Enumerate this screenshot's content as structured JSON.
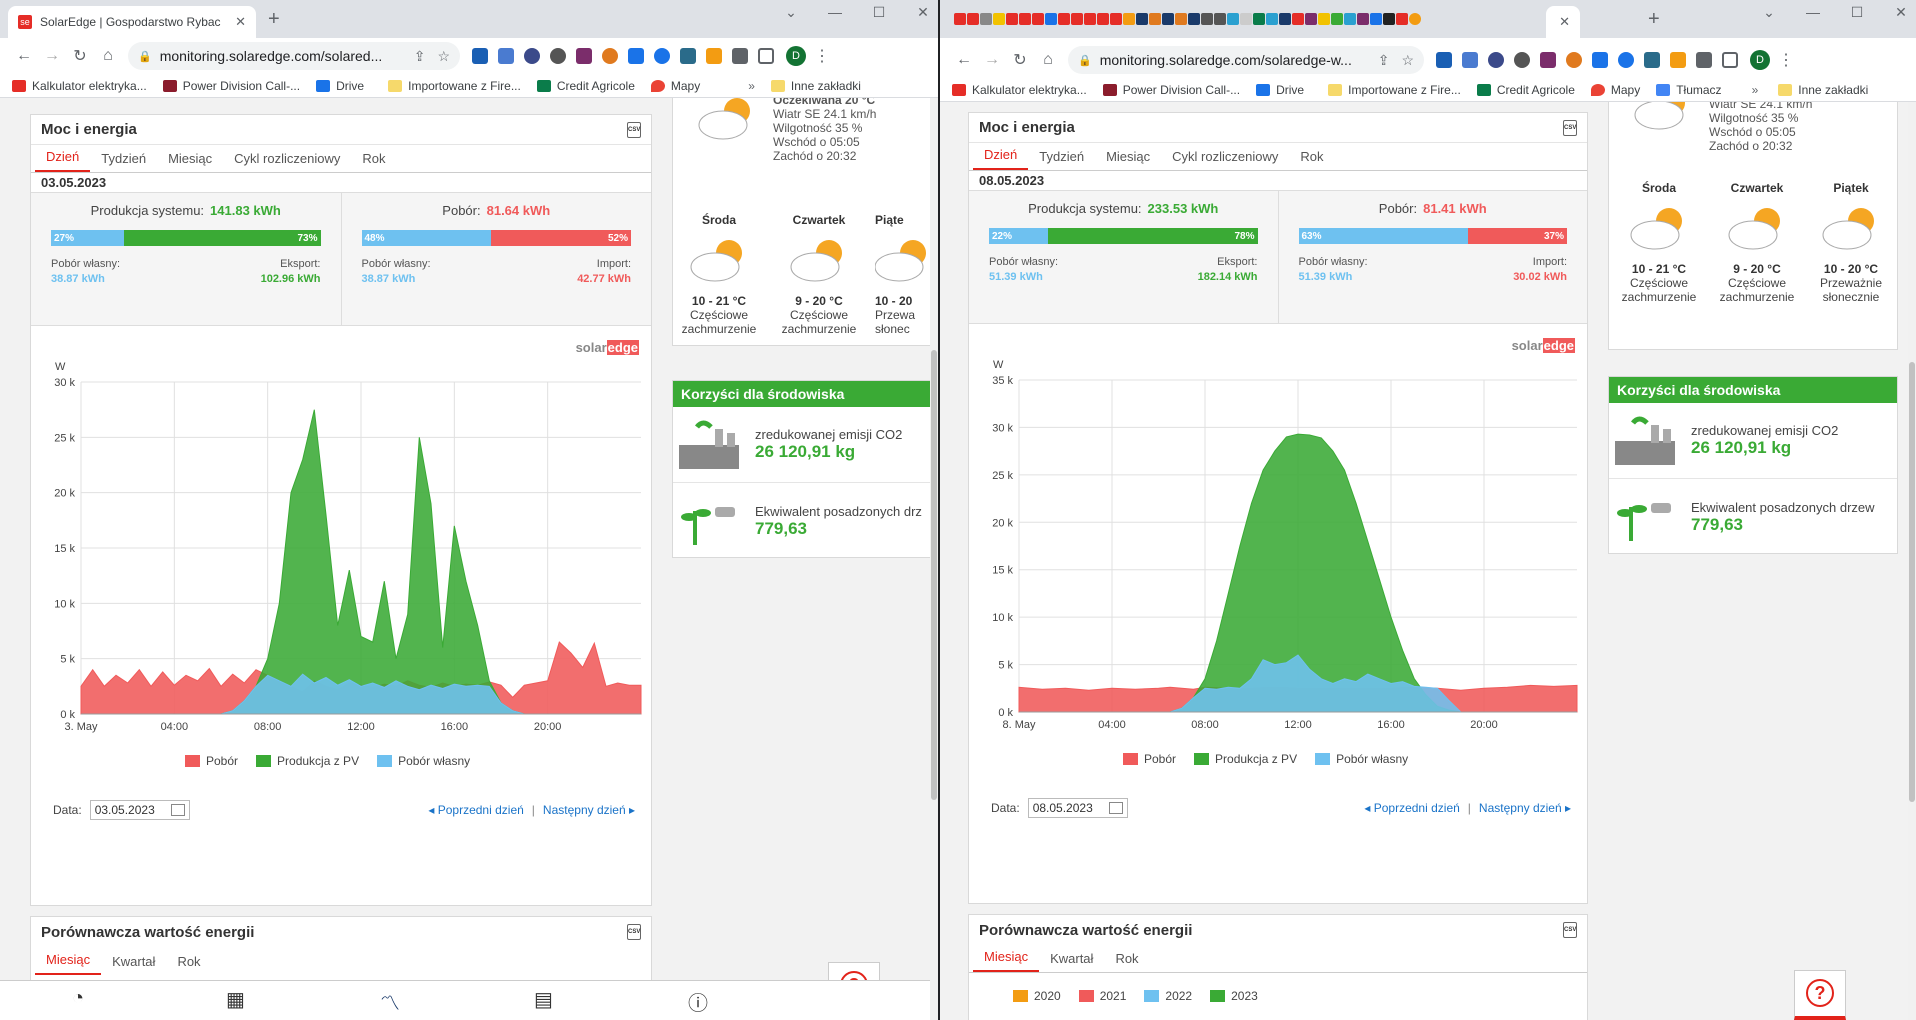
{
  "left": {
    "tab_title": "SolarEdge | Gospodarstwo Rybac",
    "url": "monitoring.solaredge.com/solared...",
    "bookmarks": [
      "Kalkulator elektryka...",
      "Power Division Call-...",
      "Drive",
      "Importowane z Fire...",
      "Credit Agricole",
      "Mapy",
      "Inne zakładki"
    ],
    "panel_title": "Moc i energia",
    "tabs": [
      "Dzień",
      "Tydzień",
      "Miesiąc",
      "Cykl rozliczeniowy",
      "Rok"
    ],
    "date": "03.05.2023",
    "production_label": "Produkcja systemu:",
    "production_value": "141.83 kWh",
    "consumption_label": "Pobór:",
    "consumption_value": "81.64 kWh",
    "prod_bar": {
      "left_pct": "27%",
      "right_pct": "73%",
      "left_frac": 0.27
    },
    "cons_bar": {
      "left_pct": "48%",
      "right_pct": "52%",
      "left_frac": 0.48
    },
    "self_label": "Pobór własny:",
    "self_value": "38.87 kWh",
    "export_label": "Eksport:",
    "export_value": "102.96 kWh",
    "self_label2": "Pobór własny:",
    "self_value2": "38.87 kWh",
    "import_label": "Import:",
    "import_value": "42.77 kWh",
    "brand_a": "solar",
    "brand_b": "edge",
    "legend": [
      "Pobór",
      "Produkcja z PV",
      "Pobór własny"
    ],
    "date_field_label": "Data:",
    "date_field_value": "03.05.2023",
    "prev_day": "Poprzedni dzień",
    "next_day": "Następny dzień",
    "cmp_title": "Porównawcza wartość energii",
    "cmp_tabs": [
      "Miesiąc",
      "Kwartał",
      "Rok"
    ],
    "weather_top": [
      "Oczekiwana 20 °C",
      "Wiatr SE 24.1 km/h",
      "Wilgotność 35 %",
      "Wschód o 05:05",
      "Zachód o 20:32"
    ],
    "forecast": [
      {
        "day": "Środa",
        "temp": "10 - 21 °C",
        "desc1": "Częściowe",
        "desc2": "zachmurzenie"
      },
      {
        "day": "Czwartek",
        "temp": "9 - 20 °C",
        "desc1": "Częściowe",
        "desc2": "zachmurzenie"
      },
      {
        "day": "Piąte",
        "temp": "10 - 20",
        "desc1": "Przewa",
        "desc2": "słonec"
      }
    ],
    "env_title": "Korzyści dla środowiska",
    "co2_label": "zredukowanej emisji CO2",
    "co2_value": "26 120,91 kg",
    "trees_label": "Ekwiwalent posadzonych drz",
    "trees_value": "779,63"
  },
  "right": {
    "tab_title": "",
    "url": "monitoring.solaredge.com/solaredge-w...",
    "bookmarks": [
      "Kalkulator elektryka...",
      "Power Division Call-...",
      "Drive",
      "Importowane z Fire...",
      "Credit Agricole",
      "Mapy",
      "Tłumacz",
      "Inne zakładki"
    ],
    "panel_title": "Moc i energia",
    "tabs": [
      "Dzień",
      "Tydzień",
      "Miesiąc",
      "Cykl rozliczeniowy",
      "Rok"
    ],
    "date": "08.05.2023",
    "production_label": "Produkcja systemu:",
    "production_value": "233.53 kWh",
    "consumption_label": "Pobór:",
    "consumption_value": "81.41 kWh",
    "prod_bar": {
      "left_pct": "22%",
      "right_pct": "78%",
      "left_frac": 0.22
    },
    "cons_bar": {
      "left_pct": "63%",
      "right_pct": "37%",
      "left_frac": 0.63
    },
    "self_label": "Pobór własny:",
    "self_value": "51.39 kWh",
    "export_label": "Eksport:",
    "export_value": "182.14 kWh",
    "self_label2": "Pobór własny:",
    "self_value2": "51.39 kWh",
    "import_label": "Import:",
    "import_value": "30.02 kWh",
    "brand_a": "solar",
    "brand_b": "edge",
    "legend": [
      "Pobór",
      "Produkcja z PV",
      "Pobór własny"
    ],
    "date_field_label": "Data:",
    "date_field_value": "08.05.2023",
    "prev_day": "Poprzedni dzień",
    "next_day": "Następny dzień",
    "cmp_title": "Porównawcza wartość energii",
    "cmp_tabs": [
      "Miesiąc",
      "Kwartał",
      "Rok"
    ],
    "cmp_legend": [
      "2020",
      "2021",
      "2022",
      "2023"
    ],
    "weather_top": [
      "Wiatr SE 24.1 km/h",
      "Wilgotność 35 %",
      "Wschód o 05:05",
      "Zachód o 20:32"
    ],
    "forecast": [
      {
        "day": "Środa",
        "temp": "10 - 21 °C",
        "desc1": "Częściowe",
        "desc2": "zachmurzenie"
      },
      {
        "day": "Czwartek",
        "temp": "9 - 20 °C",
        "desc1": "Częściowe",
        "desc2": "zachmurzenie"
      },
      {
        "day": "Piątek",
        "temp": "10 - 20 °C",
        "desc1": "Przeważnie",
        "desc2": "słonecznie"
      }
    ],
    "env_title": "Korzyści dla środowiska",
    "co2_label": "zredukowanej emisji CO2",
    "co2_value": "26 120,91 kg",
    "trees_label": "Ekwiwalent posadzonych drzew",
    "trees_value": "779,63"
  },
  "colors": {
    "consumption": "#f05a5a",
    "production": "#3aaa35",
    "self": "#6ec1f0",
    "accent": "#e2231a"
  },
  "chart_data": [
    {
      "type": "area",
      "title": "",
      "ylabel": "W",
      "x_ticks": [
        "3. May",
        "04:00",
        "08:00",
        "12:00",
        "16:00",
        "20:00"
      ],
      "y_ticks": [
        "0 k",
        "5 k",
        "10 k",
        "15 k",
        "20 k",
        "25 k",
        "30 k"
      ],
      "xlim_hours": [
        0,
        24
      ],
      "ylim": [
        0,
        30000
      ],
      "series": [
        {
          "name": "Pobór",
          "x": [
            0,
            0.5,
            1,
            1.5,
            2,
            2.5,
            3,
            3.5,
            4,
            4.5,
            5,
            5.5,
            6,
            6.5,
            7,
            7.5,
            8,
            8.5,
            9,
            9.5,
            10,
            10.5,
            11,
            11.5,
            12,
            12.5,
            13,
            13.5,
            14,
            14.5,
            15,
            15.5,
            16,
            16.5,
            17,
            17.5,
            18,
            18.5,
            19,
            19.5,
            20,
            20.5,
            21,
            21.5,
            22,
            22.5,
            23,
            23.5,
            24
          ],
          "values": [
            2500,
            4000,
            2500,
            3500,
            2800,
            4000,
            2500,
            3800,
            2600,
            3500,
            3000,
            4100,
            2500,
            3600,
            2800,
            4000,
            3500,
            3000,
            2500,
            2000,
            3000,
            2500,
            2200,
            2800,
            2600,
            2400,
            2700,
            2500,
            3000,
            2600,
            2400,
            2800,
            2500,
            2700,
            2600,
            2900,
            2600,
            1500,
            2600,
            2800,
            3000,
            6500,
            5500,
            4200,
            6400,
            2500,
            2800,
            2600,
            2600
          ]
        },
        {
          "name": "Produkcja z PV",
          "x": [
            0,
            6,
            6.5,
            7,
            7.5,
            8,
            8.5,
            9,
            9.5,
            10,
            10.5,
            11,
            11.5,
            12,
            12.5,
            13,
            13.5,
            14,
            14.5,
            15,
            15.5,
            16,
            16.5,
            17,
            17.5,
            18,
            18.5,
            19,
            19.5,
            20,
            24
          ],
          "values": [
            0,
            0,
            300,
            1200,
            2500,
            5000,
            10000,
            20000,
            23000,
            27500,
            18000,
            8000,
            13000,
            7000,
            6500,
            12000,
            5000,
            9000,
            25000,
            19000,
            6000,
            17000,
            12000,
            8000,
            3000,
            1000,
            300,
            0,
            0,
            0,
            0
          ]
        },
        {
          "name": "Pobór własny",
          "x": [
            0,
            6,
            6.5,
            7,
            7.5,
            8,
            8.5,
            9,
            9.5,
            10,
            10.5,
            11,
            11.5,
            12,
            12.5,
            13,
            13.5,
            14,
            14.5,
            15,
            15.5,
            16,
            16.5,
            17,
            17.5,
            18,
            18.5,
            19,
            19.5,
            20,
            24
          ],
          "values": [
            0,
            0,
            300,
            1200,
            2500,
            3500,
            3000,
            2500,
            3600,
            2800,
            3300,
            2600,
            3100,
            2500,
            2800,
            2400,
            3000,
            2500,
            2200,
            2600,
            2300,
            2700,
            2500,
            2600,
            2500,
            1000,
            300,
            0,
            0,
            0,
            0
          ]
        }
      ]
    },
    {
      "type": "area",
      "title": "",
      "ylabel": "W",
      "x_ticks": [
        "8. May",
        "04:00",
        "08:00",
        "12:00",
        "16:00",
        "20:00"
      ],
      "y_ticks": [
        "0 k",
        "5 k",
        "10 k",
        "15 k",
        "20 k",
        "25 k",
        "30 k",
        "35 k"
      ],
      "xlim_hours": [
        0,
        24
      ],
      "ylim": [
        0,
        35000
      ],
      "series": [
        {
          "name": "Pobór",
          "x": [
            0,
            1,
            2,
            3,
            4,
            5,
            6,
            6.5,
            7,
            7.5,
            8,
            9,
            10,
            11,
            12,
            13,
            14,
            15,
            16,
            17,
            18,
            18.5,
            19,
            20,
            21,
            22,
            23,
            24
          ],
          "values": [
            2600,
            2400,
            2500,
            2300,
            2500,
            2400,
            2500,
            2600,
            2500,
            2400,
            2600,
            2500,
            2500,
            2600,
            2500,
            2500,
            2500,
            2500,
            2500,
            2600,
            2500,
            2400,
            2300,
            2500,
            2600,
            2800,
            2700,
            2800
          ]
        },
        {
          "name": "Produkcja z PV",
          "x": [
            0,
            6.5,
            7,
            7.5,
            8,
            8.5,
            9,
            9.5,
            10,
            10.5,
            11,
            11.5,
            12,
            12.5,
            13,
            13.5,
            14,
            14.5,
            15,
            15.5,
            16,
            16.5,
            17,
            17.5,
            18,
            18.5,
            19,
            24
          ],
          "values": [
            0,
            0,
            400,
            1500,
            3500,
            7500,
            12500,
            17500,
            22000,
            25500,
            27500,
            29000,
            29300,
            29200,
            28900,
            27500,
            25500,
            22000,
            18000,
            14000,
            10000,
            6500,
            3500,
            1800,
            600,
            200,
            0,
            0
          ]
        },
        {
          "name": "Pobór własny",
          "x": [
            0,
            6.5,
            7,
            7.5,
            8,
            8.5,
            9,
            9.5,
            10,
            10.5,
            11,
            11.5,
            12,
            12.5,
            13,
            13.5,
            14,
            14.5,
            15,
            15.5,
            16,
            16.5,
            17,
            17.5,
            18,
            18.5,
            19,
            24
          ],
          "values": [
            0,
            0,
            400,
            1500,
            2500,
            2400,
            2600,
            2500,
            3500,
            5500,
            5000,
            5200,
            6000,
            4500,
            3500,
            3000,
            3500,
            3200,
            4000,
            3500,
            3000,
            3200,
            2700,
            2600,
            2500,
            1200,
            0,
            0
          ]
        }
      ]
    }
  ]
}
